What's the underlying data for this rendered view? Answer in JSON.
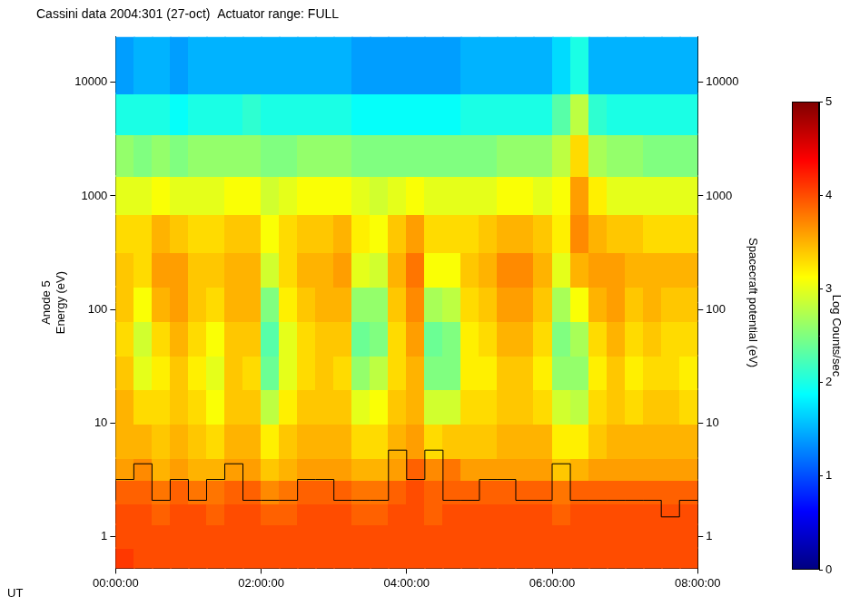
{
  "chart_data": {
    "type": "heatmap",
    "title": "Cassini data 2004:301 (27-oct)  Actuator range: FULL",
    "xlabel": "UT",
    "ylabel": [
      "Anode 5",
      "Energy (eV)"
    ],
    "y2label": "Spacecraft potential (eV)",
    "log": "y",
    "grid": false,
    "xlim": [
      0,
      8
    ],
    "xticks": [
      {
        "value": 0,
        "label": "00:00:00"
      },
      {
        "value": 2,
        "label": "02:00:00"
      },
      {
        "value": 4,
        "label": "04:00:00"
      },
      {
        "value": 6,
        "label": "06:00:00"
      },
      {
        "value": 8,
        "label": "08:00:00"
      }
    ],
    "ylim": [
      0.53,
      25000
    ],
    "yticks": [
      1,
      10,
      100,
      1000,
      10000
    ],
    "y2lim": [
      0.53,
      25000
    ],
    "y2ticks": [
      1,
      10,
      100,
      1000,
      10000
    ],
    "x_bins": [
      0,
      0.25,
      0.5,
      0.75,
      1,
      1.25,
      1.5,
      1.75,
      2,
      2.25,
      2.5,
      2.75,
      3,
      3.25,
      3.5,
      3.75,
      4,
      4.25,
      4.5,
      4.75,
      5,
      5.25,
      5.5,
      5.75,
      6,
      6.25,
      6.5,
      6.75,
      7,
      7.25,
      7.5,
      7.75,
      8
    ],
    "y_bins": [
      0.53,
      0.8,
      1.3,
      2,
      3.2,
      5,
      10,
      20,
      40,
      80,
      160,
      320,
      700,
      1500,
      3500,
      8000,
      25000
    ],
    "cells": [
      [
        4.1,
        4.0,
        4.0,
        3.9,
        3.6,
        3.5,
        3.5,
        3.4,
        3.3,
        3.4,
        3.4,
        3.3,
        3.0,
        2.6,
        2.0,
        1.4
      ],
      [
        4.0,
        4.0,
        4.0,
        3.9,
        3.7,
        3.5,
        3.3,
        3.0,
        2.9,
        3.1,
        3.3,
        3.3,
        3.0,
        2.5,
        2.0,
        1.5
      ],
      [
        4.0,
        4.0,
        3.9,
        3.8,
        3.5,
        3.4,
        3.3,
        3.2,
        3.3,
        3.5,
        3.6,
        3.5,
        3.1,
        2.6,
        2.0,
        1.5
      ],
      [
        4.0,
        4.0,
        4.0,
        3.9,
        3.6,
        3.5,
        3.4,
        3.4,
        3.5,
        3.6,
        3.6,
        3.4,
        3.0,
        2.5,
        1.9,
        1.4
      ],
      [
        4.0,
        4.0,
        4.0,
        3.8,
        3.5,
        3.4,
        3.3,
        3.2,
        3.3,
        3.4,
        3.4,
        3.3,
        3.0,
        2.6,
        2.0,
        1.5
      ],
      [
        4.0,
        4.0,
        3.9,
        3.8,
        3.5,
        3.3,
        3.1,
        3.0,
        3.1,
        3.3,
        3.4,
        3.3,
        3.0,
        2.6,
        2.0,
        1.5
      ],
      [
        4.0,
        4.0,
        4.0,
        3.9,
        3.6,
        3.5,
        3.4,
        3.4,
        3.4,
        3.5,
        3.5,
        3.4,
        3.1,
        2.6,
        2.0,
        1.5
      ],
      [
        4.0,
        4.0,
        4.0,
        3.9,
        3.6,
        3.5,
        3.4,
        3.3,
        3.4,
        3.5,
        3.5,
        3.4,
        3.1,
        2.6,
        2.1,
        1.5
      ],
      [
        4.0,
        4.0,
        3.9,
        3.7,
        3.4,
        3.2,
        2.8,
        2.4,
        2.3,
        2.5,
        2.9,
        3.1,
        2.9,
        2.5,
        2.0,
        1.5
      ],
      [
        4.0,
        4.0,
        3.9,
        3.8,
        3.5,
        3.4,
        3.2,
        3.0,
        3.0,
        3.2,
        3.3,
        3.3,
        3.0,
        2.5,
        2.0,
        1.5
      ],
      [
        4.0,
        4.0,
        4.0,
        3.9,
        3.6,
        3.5,
        3.4,
        3.3,
        3.3,
        3.4,
        3.5,
        3.4,
        3.1,
        2.6,
        2.0,
        1.5
      ],
      [
        4.0,
        4.0,
        4.0,
        3.9,
        3.6,
        3.5,
        3.4,
        3.4,
        3.4,
        3.5,
        3.5,
        3.4,
        3.1,
        2.6,
        2.0,
        1.5
      ],
      [
        4.0,
        4.0,
        4.0,
        3.9,
        3.6,
        3.5,
        3.4,
        3.3,
        3.4,
        3.5,
        3.6,
        3.5,
        3.1,
        2.6,
        2.0,
        1.5
      ],
      [
        4.0,
        4.0,
        3.9,
        3.8,
        3.5,
        3.3,
        3.0,
        2.6,
        2.4,
        2.6,
        3.0,
        3.2,
        3.0,
        2.5,
        1.9,
        1.4
      ],
      [
        4.0,
        4.0,
        3.9,
        3.8,
        3.5,
        3.3,
        3.1,
        2.8,
        2.5,
        2.6,
        2.9,
        3.1,
        2.9,
        2.5,
        1.9,
        1.4
      ],
      [
        4.0,
        4.0,
        4.0,
        3.9,
        3.6,
        3.5,
        3.4,
        3.3,
        3.3,
        3.4,
        3.5,
        3.4,
        3.0,
        2.5,
        1.9,
        1.4
      ],
      [
        4.0,
        4.0,
        4.0,
        4.0,
        3.9,
        3.6,
        3.5,
        3.5,
        3.6,
        3.7,
        3.8,
        3.6,
        3.1,
        2.5,
        1.9,
        1.4
      ],
      [
        4.0,
        4.0,
        3.9,
        3.9,
        3.7,
        3.3,
        2.9,
        2.5,
        2.4,
        2.7,
        3.1,
        3.3,
        3.0,
        2.5,
        1.9,
        1.4
      ],
      [
        4.0,
        4.0,
        4.0,
        3.9,
        3.8,
        3.4,
        2.9,
        2.5,
        2.5,
        2.8,
        3.1,
        3.3,
        3.0,
        2.5,
        1.9,
        1.4
      ],
      [
        4.0,
        4.0,
        4.0,
        3.9,
        3.6,
        3.4,
        3.3,
        3.2,
        3.2,
        3.3,
        3.4,
        3.3,
        3.0,
        2.5,
        2.0,
        1.5
      ],
      [
        4.0,
        4.0,
        4.0,
        3.9,
        3.6,
        3.4,
        3.3,
        3.2,
        3.3,
        3.4,
        3.5,
        3.4,
        3.0,
        2.5,
        2.0,
        1.5
      ],
      [
        4.0,
        4.0,
        4.0,
        3.9,
        3.6,
        3.5,
        3.4,
        3.4,
        3.5,
        3.6,
        3.7,
        3.5,
        3.1,
        2.6,
        2.0,
        1.5
      ],
      [
        4.0,
        4.0,
        4.0,
        3.9,
        3.6,
        3.5,
        3.4,
        3.4,
        3.5,
        3.6,
        3.7,
        3.5,
        3.1,
        2.6,
        2.0,
        1.5
      ],
      [
        4.0,
        4.0,
        4.0,
        3.9,
        3.6,
        3.5,
        3.3,
        3.2,
        3.3,
        3.4,
        3.5,
        3.4,
        3.0,
        2.6,
        2.0,
        1.5
      ],
      [
        4.0,
        4.0,
        3.9,
        3.8,
        3.4,
        3.2,
        2.9,
        2.6,
        2.5,
        2.7,
        3.0,
        3.2,
        3.1,
        2.8,
        2.3,
        1.7
      ],
      [
        4.0,
        4.0,
        4.0,
        3.9,
        3.5,
        3.2,
        2.8,
        2.6,
        2.7,
        3.1,
        3.5,
        3.7,
        3.6,
        3.3,
        2.8,
        2.0
      ],
      [
        4.0,
        4.0,
        4.0,
        3.9,
        3.6,
        3.4,
        3.3,
        3.2,
        3.3,
        3.5,
        3.6,
        3.5,
        3.2,
        2.7,
        2.1,
        1.5
      ],
      [
        4.0,
        4.0,
        4.0,
        3.9,
        3.6,
        3.5,
        3.4,
        3.4,
        3.5,
        3.6,
        3.6,
        3.4,
        3.0,
        2.6,
        2.0,
        1.5
      ],
      [
        4.0,
        4.0,
        4.0,
        3.9,
        3.6,
        3.5,
        3.3,
        3.2,
        3.3,
        3.4,
        3.5,
        3.4,
        3.0,
        2.6,
        2.0,
        1.5
      ],
      [
        4.0,
        4.0,
        4.0,
        3.9,
        3.6,
        3.5,
        3.4,
        3.3,
        3.4,
        3.5,
        3.5,
        3.3,
        3.0,
        2.5,
        2.0,
        1.5
      ],
      [
        4.0,
        4.0,
        4.0,
        3.9,
        3.6,
        3.5,
        3.4,
        3.3,
        3.3,
        3.4,
        3.5,
        3.3,
        3.0,
        2.5,
        2.0,
        1.5
      ],
      [
        4.0,
        4.0,
        4.0,
        3.9,
        3.6,
        3.5,
        3.3,
        3.2,
        3.3,
        3.4,
        3.5,
        3.3,
        3.0,
        2.5,
        2.0,
        1.5
      ]
    ],
    "colorbar": {
      "label": "Log Counts/sec",
      "range": [
        0,
        5
      ],
      "ticks": [
        0,
        1,
        2,
        3,
        4,
        5
      ]
    },
    "potential": {
      "x": [
        0,
        0.25,
        0.5,
        0.75,
        1,
        1.25,
        1.5,
        1.75,
        2,
        2.25,
        2.5,
        2.75,
        3,
        3.25,
        3.5,
        3.75,
        4,
        4.25,
        4.5,
        4.75,
        5,
        5.25,
        5.5,
        5.75,
        6,
        6.25,
        6.5,
        6.75,
        7,
        7.25,
        7.5,
        7.75,
        8
      ],
      "values": [
        2.1,
        3.2,
        4.4,
        2.1,
        3.2,
        2.1,
        3.2,
        4.4,
        2.1,
        2.1,
        2.1,
        3.2,
        3.2,
        2.1,
        2.1,
        2.1,
        5.8,
        3.2,
        5.8,
        2.1,
        2.1,
        3.2,
        3.2,
        2.1,
        2.1,
        4.4,
        2.1,
        2.1,
        2.1,
        2.1,
        2.1,
        1.5,
        2.1
      ],
      "axis": "y2",
      "color": "#000000",
      "line_style": "step"
    }
  }
}
